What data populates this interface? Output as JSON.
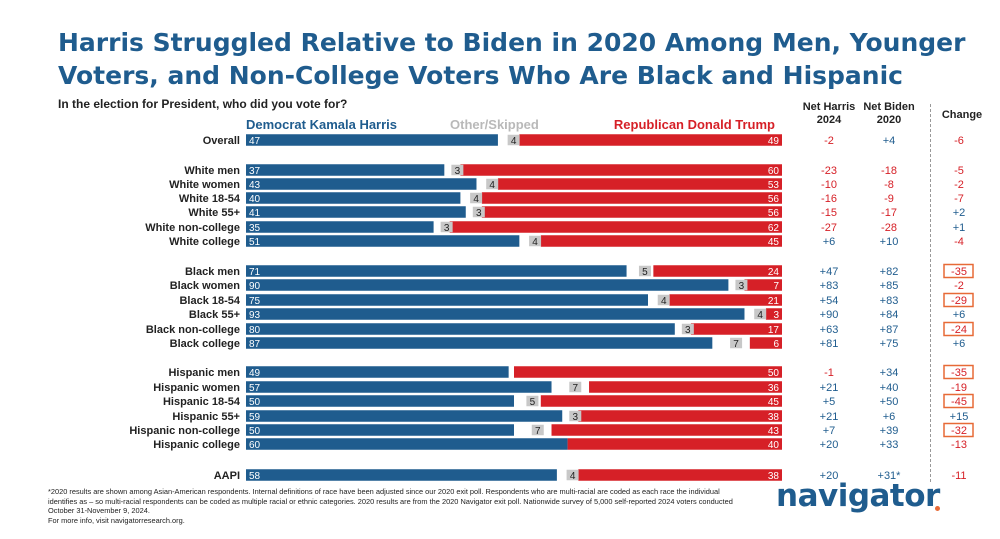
{
  "header": {
    "title": "Harris Struggled Relative to Biden in 2020 Among Men, Younger Voters, and Non-College Voters Who Are Black and Hispanic",
    "subtitle": "In the election for President, who did you vote for?"
  },
  "columns": {
    "net_harris": "Net Harris 2024",
    "net_biden": "Net Biden 2020",
    "change": "Change"
  },
  "footer": {
    "note1": "*2020 results are shown among Asian-American respondents. Internal definitions of race have been adjusted since our 2020 exit poll. Respondents who are multi-racial are coded as each race the individual identifies as – so multi-racial respondents can be coded as multiple racial or ethnic categories. 2020 results are from the 2020 Navigator exit poll. Nationwide survey of 5,000 self-reported 2024 voters conducted October 31-November 9, 2024.",
    "note2": "For more info, visit navigatorresearch.org.",
    "logo": "navigator"
  },
  "colors": {
    "dem": "#1f5c8e",
    "other": "#c8c8c8",
    "rep": "#d62027",
    "highlight": "#e76a37"
  },
  "chart_data": {
    "type": "bar",
    "orientation": "horizontal-stacked",
    "legend": [
      "Democrat Kamala Harris",
      "Other/Skipped",
      "Republican Donald Trump"
    ],
    "categories": [
      "Overall",
      "White men",
      "White women",
      "White 18-54",
      "White 55+",
      "White non-college",
      "White college",
      "Black men",
      "Black women",
      "Black 18-54",
      "Black 55+",
      "Black non-college",
      "Black college",
      "Hispanic men",
      "Hispanic women",
      "Hispanic 18-54",
      "Hispanic 55+",
      "Hispanic non-college",
      "Hispanic college",
      "AAPI"
    ],
    "series": [
      {
        "name": "Democrat Kamala Harris",
        "values": [
          47,
          37,
          43,
          40,
          41,
          35,
          51,
          71,
          90,
          75,
          93,
          80,
          87,
          49,
          57,
          50,
          59,
          50,
          60,
          58
        ]
      },
      {
        "name": "Other/Skipped",
        "values": [
          4,
          3,
          4,
          4,
          3,
          3,
          4,
          5,
          3,
          4,
          4,
          3,
          7,
          null,
          7,
          5,
          3,
          7,
          null,
          4
        ]
      },
      {
        "name": "Republican Donald Trump",
        "values": [
          49,
          60,
          53,
          56,
          56,
          62,
          45,
          24,
          7,
          21,
          3,
          17,
          6,
          50,
          36,
          45,
          38,
          43,
          40,
          38
        ]
      }
    ],
    "net_harris_2024": [
      "-2",
      "-23",
      "-10",
      "-16",
      "-15",
      "-27",
      "+6",
      "+47",
      "+83",
      "+54",
      "+90",
      "+63",
      "+81",
      "-1",
      "+21",
      "+5",
      "+21",
      "+7",
      "+20",
      "+20"
    ],
    "net_biden_2020": [
      "+4",
      "-18",
      "-8",
      "-9",
      "-17",
      "-28",
      "+10",
      "+82",
      "+85",
      "+83",
      "+84",
      "+87",
      "+75",
      "+34",
      "+40",
      "+50",
      "+6",
      "+39",
      "+33",
      "+31*"
    ],
    "change": [
      "-6",
      "-5",
      "-2",
      "-7",
      "+2",
      "+1",
      "-4",
      "-35",
      "-2",
      "-29",
      "+6",
      "-24",
      "+6",
      "-35",
      "-19",
      "-45",
      "+15",
      "-32",
      "-13",
      "-11"
    ],
    "highlighted_change": [
      false,
      false,
      false,
      false,
      false,
      false,
      false,
      true,
      false,
      true,
      false,
      true,
      false,
      true,
      false,
      true,
      false,
      true,
      false,
      false
    ],
    "xlim": [
      0,
      100
    ]
  }
}
